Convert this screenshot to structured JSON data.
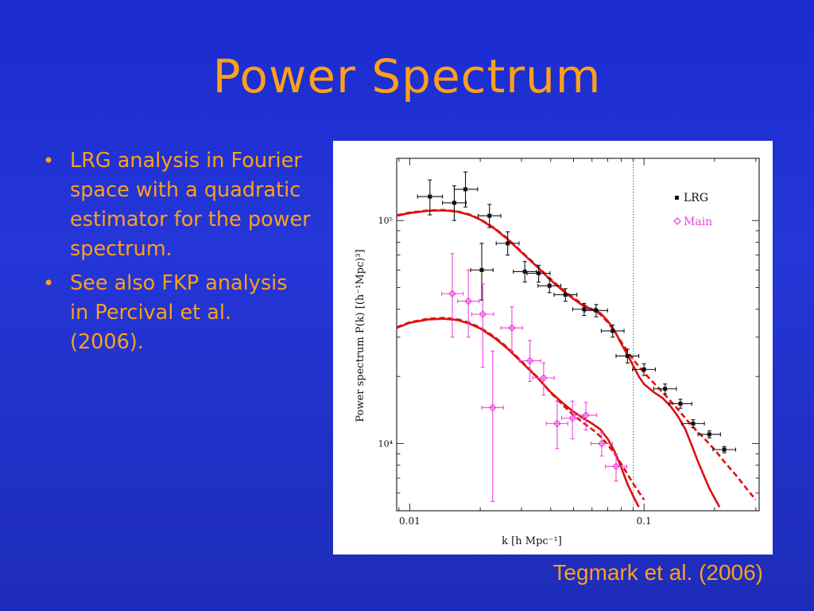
{
  "slide": {
    "title": "Power Spectrum",
    "bullets": [
      "LRG analysis in Fourier space with a quadratic estimator for the power spectrum.",
      "See also FKP analysis in Percival et al. (2006)."
    ],
    "credit": "Tegmark et al. (2006)"
  },
  "chart_data": {
    "type": "scatter",
    "title": "",
    "xlabel": "k [h Mpc⁻¹]",
    "ylabel": "Power spectrum P(k) [(h⁻¹Mpc)³]",
    "xscale": "log",
    "yscale": "log",
    "xlim": [
      0.0088,
      0.31
    ],
    "ylim": [
      5000,
      190000
    ],
    "x_ticks": [
      {
        "value": 0.01,
        "label": "0.01"
      },
      {
        "value": 0.1,
        "label": "0.1"
      }
    ],
    "y_ticks": [
      {
        "value": 10000,
        "label": "10⁴"
      },
      {
        "value": 100000,
        "label": "10⁵"
      }
    ],
    "vline": 0.09,
    "legend_position": "top-right",
    "colors": {
      "lrg": "#111111",
      "main": "#ee44dd",
      "model": "#dd1111",
      "frame": "#000000"
    },
    "series": [
      {
        "name": "LRG",
        "marker": "square",
        "color": "#111111",
        "points": [
          {
            "x": 0.0122,
            "y": 128000,
            "yerr_lo": 106000,
            "yerr_hi": 152000,
            "xerr_lo": 0.0108,
            "xerr_hi": 0.0138
          },
          {
            "x": 0.0155,
            "y": 120000,
            "yerr_lo": 100000,
            "yerr_hi": 143000,
            "xerr_lo": 0.0138,
            "xerr_hi": 0.0174
          },
          {
            "x": 0.0173,
            "y": 138000,
            "yerr_lo": 115000,
            "yerr_hi": 165000,
            "xerr_lo": 0.0155,
            "xerr_hi": 0.0195
          },
          {
            "x": 0.0203,
            "y": 60000,
            "yerr_lo": 44000,
            "yerr_hi": 79000,
            "xerr_lo": 0.0182,
            "xerr_hi": 0.0227
          },
          {
            "x": 0.0219,
            "y": 105000,
            "yerr_lo": 93000,
            "yerr_hi": 118000,
            "xerr_lo": 0.0196,
            "xerr_hi": 0.0245
          },
          {
            "x": 0.0262,
            "y": 79000,
            "yerr_lo": 70000,
            "yerr_hi": 89000,
            "xerr_lo": 0.0234,
            "xerr_hi": 0.0293
          },
          {
            "x": 0.031,
            "y": 59000,
            "yerr_lo": 53000,
            "yerr_hi": 65500,
            "xerr_lo": 0.0277,
            "xerr_hi": 0.0347
          },
          {
            "x": 0.0355,
            "y": 58000,
            "yerr_lo": 53000,
            "yerr_hi": 63000,
            "xerr_lo": 0.0317,
            "xerr_hi": 0.0397
          },
          {
            "x": 0.0395,
            "y": 51000,
            "yerr_lo": 47500,
            "yerr_hi": 55000,
            "xerr_lo": 0.0353,
            "xerr_hi": 0.0442
          },
          {
            "x": 0.0462,
            "y": 46500,
            "yerr_lo": 43500,
            "yerr_hi": 49500,
            "xerr_lo": 0.0413,
            "xerr_hi": 0.0517
          },
          {
            "x": 0.0555,
            "y": 40000,
            "yerr_lo": 37500,
            "yerr_hi": 42500,
            "xerr_lo": 0.0496,
            "xerr_hi": 0.062
          },
          {
            "x": 0.0625,
            "y": 39500,
            "yerr_lo": 37000,
            "yerr_hi": 42000,
            "xerr_lo": 0.0559,
            "xerr_hi": 0.0699
          },
          {
            "x": 0.0735,
            "y": 32000,
            "yerr_lo": 30000,
            "yerr_hi": 34000,
            "xerr_lo": 0.0657,
            "xerr_hi": 0.0822
          },
          {
            "x": 0.085,
            "y": 24700,
            "yerr_lo": 23000,
            "yerr_hi": 26500,
            "xerr_lo": 0.076,
            "xerr_hi": 0.095
          },
          {
            "x": 0.1,
            "y": 21500,
            "yerr_lo": 20200,
            "yerr_hi": 22800,
            "xerr_lo": 0.0894,
            "xerr_hi": 0.1118
          },
          {
            "x": 0.123,
            "y": 17600,
            "yerr_lo": 16700,
            "yerr_hi": 18500,
            "xerr_lo": 0.11,
            "xerr_hi": 0.1375
          },
          {
            "x": 0.143,
            "y": 15100,
            "yerr_lo": 14400,
            "yerr_hi": 15800,
            "xerr_lo": 0.128,
            "xerr_hi": 0.16
          },
          {
            "x": 0.162,
            "y": 12300,
            "yerr_lo": 11800,
            "yerr_hi": 12800,
            "xerr_lo": 0.145,
            "xerr_hi": 0.181
          },
          {
            "x": 0.19,
            "y": 11000,
            "yerr_lo": 10600,
            "yerr_hi": 11400,
            "xerr_lo": 0.17,
            "xerr_hi": 0.212
          },
          {
            "x": 0.22,
            "y": 9400,
            "yerr_lo": 9100,
            "yerr_hi": 9700,
            "xerr_lo": 0.197,
            "xerr_hi": 0.246
          }
        ]
      },
      {
        "name": "Main",
        "marker": "diamond",
        "color": "#ee44dd",
        "points": [
          {
            "x": 0.0152,
            "y": 47000,
            "yerr_lo": 30000,
            "yerr_hi": 71000,
            "xerr_lo": 0.0137,
            "xerr_hi": 0.0169
          },
          {
            "x": 0.0178,
            "y": 43500,
            "yerr_lo": 30000,
            "yerr_hi": 60000,
            "xerr_lo": 0.016,
            "xerr_hi": 0.0198
          },
          {
            "x": 0.0205,
            "y": 38000,
            "yerr_lo": 22000,
            "yerr_hi": 52000,
            "xerr_lo": 0.0184,
            "xerr_hi": 0.0228
          },
          {
            "x": 0.0226,
            "y": 14500,
            "yerr_lo": 5500,
            "yerr_hi": 26000,
            "xerr_lo": 0.0203,
            "xerr_hi": 0.0251
          },
          {
            "x": 0.0273,
            "y": 33000,
            "yerr_lo": 26000,
            "yerr_hi": 41000,
            "xerr_lo": 0.0245,
            "xerr_hi": 0.0303
          },
          {
            "x": 0.0326,
            "y": 23500,
            "yerr_lo": 19000,
            "yerr_hi": 29000,
            "xerr_lo": 0.0293,
            "xerr_hi": 0.0362
          },
          {
            "x": 0.0373,
            "y": 19700,
            "yerr_lo": 16500,
            "yerr_hi": 23000,
            "xerr_lo": 0.0335,
            "xerr_hi": 0.0414
          },
          {
            "x": 0.0426,
            "y": 12300,
            "yerr_lo": 9500,
            "yerr_hi": 15500,
            "xerr_lo": 0.0383,
            "xerr_hi": 0.0473
          },
          {
            "x": 0.0495,
            "y": 13000,
            "yerr_lo": 10500,
            "yerr_hi": 15500,
            "xerr_lo": 0.0445,
            "xerr_hi": 0.055
          },
          {
            "x": 0.0565,
            "y": 13400,
            "yerr_lo": 11500,
            "yerr_hi": 15300,
            "xerr_lo": 0.0508,
            "xerr_hi": 0.0628
          },
          {
            "x": 0.066,
            "y": 10000,
            "yerr_lo": 8800,
            "yerr_hi": 11200,
            "xerr_lo": 0.0594,
            "xerr_hi": 0.0733
          },
          {
            "x": 0.076,
            "y": 7900,
            "yerr_lo": 6800,
            "yerr_hi": 9000,
            "xerr_lo": 0.0684,
            "xerr_hi": 0.0844
          }
        ]
      }
    ],
    "model_curves": [
      {
        "group": "LRG",
        "style": "solid",
        "points": [
          [
            0.0088,
            105000
          ],
          [
            0.01,
            108000
          ],
          [
            0.012,
            110500
          ],
          [
            0.014,
            111000
          ],
          [
            0.016,
            109500
          ],
          [
            0.018,
            106000
          ],
          [
            0.02,
            101000
          ],
          [
            0.023,
            92000
          ],
          [
            0.026,
            83000
          ],
          [
            0.03,
            72000
          ],
          [
            0.035,
            62000
          ],
          [
            0.04,
            54000
          ],
          [
            0.045,
            48500
          ],
          [
            0.05,
            44500
          ],
          [
            0.055,
            41500
          ],
          [
            0.06,
            40000
          ],
          [
            0.065,
            38500
          ],
          [
            0.07,
            35500
          ],
          [
            0.075,
            32000
          ],
          [
            0.08,
            28000
          ],
          [
            0.085,
            25000
          ],
          [
            0.09,
            22300
          ],
          [
            0.095,
            20000
          ],
          [
            0.1,
            18500
          ],
          [
            0.11,
            17000
          ],
          [
            0.12,
            16000
          ],
          [
            0.13,
            14700
          ],
          [
            0.14,
            13200
          ],
          [
            0.15,
            11600
          ],
          [
            0.16,
            9800
          ],
          [
            0.17,
            8300
          ],
          [
            0.18,
            7200
          ],
          [
            0.19,
            6300
          ],
          [
            0.2,
            5700
          ],
          [
            0.21,
            5200
          ]
        ]
      },
      {
        "group": "LRG",
        "style": "dashed",
        "points": [
          [
            0.0088,
            105500
          ],
          [
            0.01,
            108500
          ],
          [
            0.012,
            111000
          ],
          [
            0.014,
            111500
          ],
          [
            0.016,
            110000
          ],
          [
            0.018,
            106500
          ],
          [
            0.02,
            101500
          ],
          [
            0.023,
            92500
          ],
          [
            0.026,
            83500
          ],
          [
            0.03,
            72500
          ],
          [
            0.035,
            62500
          ],
          [
            0.04,
            54500
          ],
          [
            0.045,
            49000
          ],
          [
            0.05,
            45000
          ],
          [
            0.055,
            42000
          ],
          [
            0.06,
            40000
          ],
          [
            0.065,
            38000
          ],
          [
            0.07,
            35000
          ],
          [
            0.075,
            31800
          ],
          [
            0.08,
            28500
          ],
          [
            0.085,
            26000
          ],
          [
            0.09,
            23800
          ],
          [
            0.1,
            20800
          ],
          [
            0.11,
            18700
          ],
          [
            0.12,
            17000
          ],
          [
            0.13,
            15500
          ],
          [
            0.14,
            14200
          ],
          [
            0.15,
            13000
          ],
          [
            0.16,
            12000
          ],
          [
            0.18,
            10600
          ],
          [
            0.2,
            9400
          ],
          [
            0.22,
            8300
          ],
          [
            0.25,
            7100
          ],
          [
            0.28,
            6100
          ],
          [
            0.3,
            5600
          ]
        ]
      },
      {
        "group": "Main",
        "style": "solid",
        "points": [
          [
            0.0088,
            33000
          ],
          [
            0.01,
            34800
          ],
          [
            0.012,
            36000
          ],
          [
            0.014,
            36300
          ],
          [
            0.016,
            35800
          ],
          [
            0.018,
            34500
          ],
          [
            0.02,
            32800
          ],
          [
            0.023,
            29800
          ],
          [
            0.026,
            26800
          ],
          [
            0.03,
            23200
          ],
          [
            0.035,
            19800
          ],
          [
            0.04,
            17000
          ],
          [
            0.045,
            15200
          ],
          [
            0.05,
            13900
          ],
          [
            0.055,
            13000
          ],
          [
            0.06,
            12300
          ],
          [
            0.065,
            11600
          ],
          [
            0.07,
            10500
          ],
          [
            0.075,
            9200
          ],
          [
            0.08,
            7800
          ],
          [
            0.085,
            6600
          ],
          [
            0.09,
            5800
          ],
          [
            0.095,
            5200
          ]
        ]
      },
      {
        "group": "Main",
        "style": "dashed",
        "points": [
          [
            0.0088,
            33200
          ],
          [
            0.01,
            35000
          ],
          [
            0.012,
            36300
          ],
          [
            0.014,
            36600
          ],
          [
            0.016,
            36100
          ],
          [
            0.018,
            34800
          ],
          [
            0.02,
            33100
          ],
          [
            0.023,
            30100
          ],
          [
            0.026,
            27100
          ],
          [
            0.03,
            23400
          ],
          [
            0.035,
            19900
          ],
          [
            0.04,
            16900
          ],
          [
            0.045,
            14900
          ],
          [
            0.05,
            13400
          ],
          [
            0.055,
            12400
          ],
          [
            0.06,
            11600
          ],
          [
            0.065,
            10800
          ],
          [
            0.07,
            9900
          ],
          [
            0.075,
            9000
          ],
          [
            0.08,
            8100
          ],
          [
            0.085,
            7300
          ],
          [
            0.09,
            6600
          ],
          [
            0.1,
            5600
          ]
        ]
      }
    ]
  }
}
